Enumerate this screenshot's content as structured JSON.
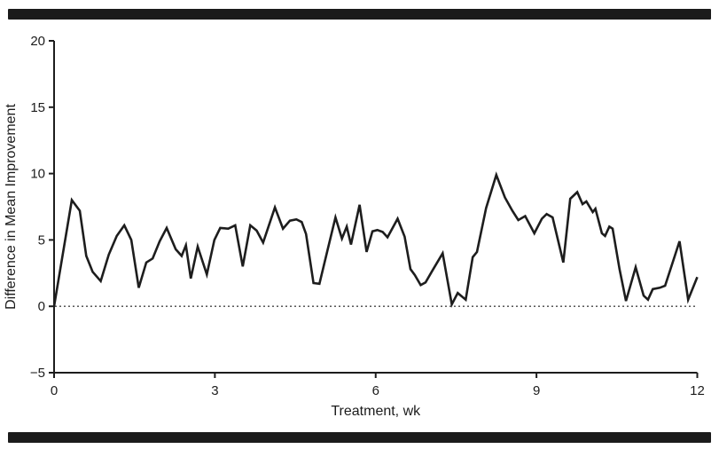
{
  "figure": {
    "x_axis_title": "Treatment, wk",
    "y_axis_title": "Difference in Mean Improvement"
  },
  "style": {
    "series_color": "#1d1d1d",
    "axis_color": "#1d1d1d",
    "reference_line_color": "#454545",
    "border_bar_color": "#1b1b1b",
    "background_color": "#ffffff"
  },
  "chart_data": {
    "type": "line",
    "title": "",
    "xlabel": "Treatment, wk",
    "ylabel": "Difference in Mean Improvement",
    "xlim": [
      0,
      12
    ],
    "ylim": [
      -5,
      20
    ],
    "x_ticks": [
      0,
      3,
      6,
      9,
      12
    ],
    "y_ticks": [
      -5,
      0,
      5,
      10,
      15,
      20
    ],
    "grid": false,
    "legend_position": "none",
    "reference_line": {
      "y": 0,
      "style": "dotted"
    },
    "series": [
      {
        "name": "difference-in-mean-improvement",
        "color": "#1d1d1d",
        "stroke_width": 2.6,
        "points": [
          [
            0.0,
            0.0
          ],
          [
            0.33,
            8.0
          ],
          [
            0.48,
            7.2
          ],
          [
            0.6,
            3.8
          ],
          [
            0.72,
            2.6
          ],
          [
            0.87,
            1.9
          ],
          [
            1.02,
            3.9
          ],
          [
            1.17,
            5.3
          ],
          [
            1.31,
            6.1
          ],
          [
            1.44,
            5.0
          ],
          [
            1.58,
            1.4
          ],
          [
            1.72,
            3.3
          ],
          [
            1.84,
            3.6
          ],
          [
            1.97,
            4.9
          ],
          [
            2.1,
            5.9
          ],
          [
            2.27,
            4.3
          ],
          [
            2.38,
            3.8
          ],
          [
            2.46,
            4.6
          ],
          [
            2.55,
            2.1
          ],
          [
            2.68,
            4.5
          ],
          [
            2.85,
            2.4
          ],
          [
            2.99,
            5.0
          ],
          [
            3.1,
            5.9
          ],
          [
            3.25,
            5.85
          ],
          [
            3.38,
            6.1
          ],
          [
            3.52,
            3.0
          ],
          [
            3.66,
            6.1
          ],
          [
            3.78,
            5.7
          ],
          [
            3.9,
            4.8
          ],
          [
            4.12,
            7.45
          ],
          [
            4.27,
            5.85
          ],
          [
            4.4,
            6.45
          ],
          [
            4.52,
            6.55
          ],
          [
            4.62,
            6.35
          ],
          [
            4.7,
            5.45
          ],
          [
            4.84,
            1.75
          ],
          [
            4.95,
            1.7
          ],
          [
            5.1,
            4.2
          ],
          [
            5.25,
            6.7
          ],
          [
            5.37,
            5.1
          ],
          [
            5.46,
            6.0
          ],
          [
            5.54,
            4.65
          ],
          [
            5.7,
            7.65
          ],
          [
            5.83,
            4.1
          ],
          [
            5.94,
            5.65
          ],
          [
            6.03,
            5.75
          ],
          [
            6.13,
            5.6
          ],
          [
            6.22,
            5.2
          ],
          [
            6.41,
            6.6
          ],
          [
            6.54,
            5.25
          ],
          [
            6.65,
            2.8
          ],
          [
            6.73,
            2.35
          ],
          [
            6.84,
            1.6
          ],
          [
            6.93,
            1.8
          ],
          [
            7.06,
            2.7
          ],
          [
            7.25,
            4.0
          ],
          [
            7.42,
            0.15
          ],
          [
            7.53,
            1.0
          ],
          [
            7.68,
            0.5
          ],
          [
            7.81,
            3.7
          ],
          [
            7.89,
            4.1
          ],
          [
            8.06,
            7.4
          ],
          [
            8.25,
            9.9
          ],
          [
            8.41,
            8.2
          ],
          [
            8.55,
            7.2
          ],
          [
            8.66,
            6.5
          ],
          [
            8.79,
            6.8
          ],
          [
            8.96,
            5.5
          ],
          [
            9.1,
            6.6
          ],
          [
            9.19,
            6.95
          ],
          [
            9.3,
            6.7
          ],
          [
            9.5,
            3.3
          ],
          [
            9.63,
            8.1
          ],
          [
            9.76,
            8.6
          ],
          [
            9.86,
            7.7
          ],
          [
            9.93,
            7.9
          ],
          [
            10.05,
            7.1
          ],
          [
            10.1,
            7.35
          ],
          [
            10.22,
            5.5
          ],
          [
            10.28,
            5.3
          ],
          [
            10.36,
            6.0
          ],
          [
            10.42,
            5.85
          ],
          [
            10.55,
            2.8
          ],
          [
            10.67,
            0.4
          ],
          [
            10.85,
            2.95
          ],
          [
            11.0,
            0.8
          ],
          [
            11.08,
            0.5
          ],
          [
            11.17,
            1.3
          ],
          [
            11.3,
            1.4
          ],
          [
            11.4,
            1.55
          ],
          [
            11.67,
            4.9
          ],
          [
            11.83,
            0.5
          ],
          [
            12.0,
            2.2
          ]
        ]
      }
    ]
  }
}
